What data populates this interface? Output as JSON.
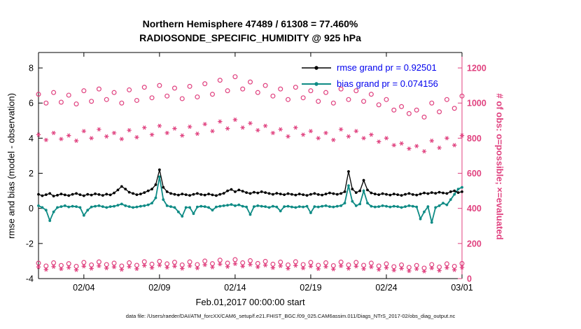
{
  "figure": {
    "title_line1": "Northern Hemisphere 47489 / 61308 = 77.460%",
    "title_line2": "RADIOSONDE_SPECIFIC_HUMIDITY @ 925 hPa",
    "xlabel": "Feb.01,2017 00:00:00 start",
    "ylabel_left": "rmse and bias (model - observation)",
    "ylabel_right": "# of obs: o=possible; ×=evaluated",
    "caption": "data file: /Users/raeder/DAI/ATM_forcXX/CAM6_setup/f.e21.FHIST_BGC.f09_025.CAM6assim.011/Diags_NTrS_2017-02/obs_diag_output.nc"
  },
  "legend": {
    "rmse_label": "rmse grand pr = 0.92501",
    "bias_label": "bias grand pr = 0.074156"
  },
  "colors": {
    "black": "#000000",
    "teal": "#0e8b85",
    "pink": "#e0417f",
    "blue": "#0000ee"
  },
  "chart_data": {
    "type": "line",
    "title": "Northern Hemisphere 47489 / 61308 = 77.460% | RADIOSONDE_SPECIFIC_HUMIDITY @ 925 hPa",
    "x_axis": {
      "label": "Feb.01,2017 00:00:00 start",
      "range_days": [
        0,
        28
      ],
      "ticks": [
        {
          "day": 3,
          "label": "02/04"
        },
        {
          "day": 8,
          "label": "02/09"
        },
        {
          "day": 13,
          "label": "02/14"
        },
        {
          "day": 18,
          "label": "02/19"
        },
        {
          "day": 23,
          "label": "02/24"
        },
        {
          "day": 28,
          "label": "03/01"
        }
      ]
    },
    "y_axis_left": {
      "label": "rmse and bias (model - observation)",
      "lim": [
        -4,
        8.88
      ],
      "ticks": [
        -4,
        -2,
        0,
        2,
        4,
        6,
        8
      ]
    },
    "y_axis_right": {
      "label": "# of obs: o=possible; ×=evaluated",
      "lim": [
        0,
        1288
      ],
      "ticks": [
        0,
        200,
        400,
        600,
        800,
        1000,
        1200
      ],
      "mapping": "count = (left_axis_value + 4) * 100"
    },
    "legend_entries": [
      "rmse grand pr = 0.92501",
      "bias grand pr = 0.074156"
    ],
    "grand_rmse": 0.92501,
    "grand_bias": 0.074156,
    "series": [
      {
        "name": "N_rejected_evaluated",
        "axis": "right",
        "marker": "asterisk",
        "line": false,
        "color": "pink",
        "t_start": 0,
        "t_step": 0.5,
        "values": [
          66,
          52,
          68,
          55,
          63,
          50,
          70,
          58,
          72,
          60,
          66,
          52,
          68,
          56,
          74,
          62,
          76,
          64,
          70,
          58,
          72,
          60,
          78,
          65,
          82,
          68,
          84,
          70,
          80,
          66,
          76,
          62,
          72,
          58,
          74,
          60,
          70,
          56,
          68,
          54,
          72,
          58,
          70,
          56,
          66,
          52,
          62,
          48,
          58,
          44,
          55,
          42,
          60,
          46,
          62,
          50,
          64
        ]
      },
      {
        "name": "N_rejected_possible",
        "axis": "right",
        "marker": "open-circle",
        "line": false,
        "color": "pink",
        "t_start": 0,
        "t_step": 0.5,
        "values": [
          88,
          72,
          90,
          75,
          85,
          70,
          92,
          78,
          95,
          80,
          88,
          72,
          90,
          76,
          96,
          82,
          98,
          84,
          93,
          78,
          95,
          80,
          100,
          85,
          105,
          88,
          108,
          90,
          102,
          86,
          98,
          82,
          94,
          78,
          96,
          80,
          92,
          76,
          90,
          74,
          94,
          78,
          92,
          76,
          88,
          72,
          84,
          68,
          78,
          64,
          75,
          60,
          80,
          66,
          84,
          70,
          86
        ]
      },
      {
        "name": "N_possible",
        "axis": "right",
        "marker": "open-circle",
        "line": false,
        "color": "pink",
        "t_start": 0,
        "t_step": 0.5,
        "values": [
          1050,
          1000,
          1060,
          1005,
          1045,
          995,
          1070,
          1010,
          1080,
          1020,
          1060,
          1000,
          1075,
          1015,
          1090,
          1030,
          1100,
          1040,
          1085,
          1025,
          1095,
          1035,
          1110,
          1050,
          1130,
          1070,
          1150,
          1080,
          1120,
          1060,
          1100,
          1040,
          1080,
          1020,
          1090,
          1030,
          1070,
          1010,
          1060,
          1000,
          1080,
          1020,
          1070,
          1010,
          1050,
          990,
          1020,
          960,
          980,
          940,
          960,
          920,
          1000,
          950,
          1020,
          970,
          1040
        ]
      },
      {
        "name": "N_evaluated",
        "axis": "right",
        "marker": "asterisk",
        "line": false,
        "color": "pink",
        "t_start": 0,
        "t_step": 0.5,
        "values": [
          820,
          790,
          830,
          795,
          815,
          785,
          840,
          800,
          850,
          810,
          830,
          795,
          845,
          805,
          860,
          820,
          870,
          830,
          855,
          815,
          865,
          825,
          880,
          840,
          895,
          855,
          905,
          860,
          885,
          845,
          870,
          830,
          850,
          810,
          860,
          820,
          840,
          800,
          830,
          790,
          850,
          810,
          840,
          800,
          820,
          780,
          800,
          760,
          770,
          740,
          755,
          725,
          785,
          745,
          800,
          760,
          815
        ]
      },
      {
        "name": "bias",
        "axis": "left",
        "marker": "point",
        "line": true,
        "line_width": 1.8,
        "color": "teal",
        "t_start": 0,
        "t_step": 0.25,
        "values": [
          0.15,
          0.05,
          -0.1,
          -0.7,
          -0.2,
          0.05,
          0.1,
          0.15,
          0.08,
          0.12,
          0.1,
          0.05,
          -0.4,
          -0.1,
          0.08,
          0.12,
          0.15,
          0.1,
          0.05,
          0.1,
          0.12,
          0.18,
          0.25,
          0.15,
          0.1,
          0.05,
          0.08,
          0.12,
          0.15,
          0.2,
          0.3,
          0.6,
          1.8,
          0.5,
          0.15,
          0.1,
          0.05,
          -0.2,
          -0.45,
          0.05,
          0.05,
          -0.3,
          0.08,
          0.12,
          0.1,
          0.05,
          -0.1,
          0.08,
          0.12,
          0.15,
          0.18,
          0.22,
          0.15,
          0.2,
          0.12,
          0.08,
          -0.35,
          0.1,
          0.15,
          0.12,
          0.1,
          0.05,
          0.12,
          0.08,
          -0.15,
          0.1,
          0.12,
          0.08,
          0.05,
          0.1,
          0.08,
          0.12,
          -0.25,
          0.1,
          0.08,
          0.12,
          0.15,
          0.1,
          0.08,
          0.12,
          0.15,
          0.3,
          1.3,
          0.4,
          0.15,
          0.25,
          1.0,
          0.3,
          0.12,
          0.08,
          0.1,
          0.15,
          0.12,
          0.08,
          0.12,
          0.1,
          0.05,
          0.1,
          0.15,
          0.12,
          0.08,
          -0.6,
          -0.2,
          0.1,
          -0.8,
          0.05,
          0.15,
          0.3,
          0.2,
          0.5,
          0.8,
          1.1,
          1.2
        ]
      },
      {
        "name": "rmse",
        "axis": "left",
        "marker": "point",
        "line": true,
        "line_width": 1.3,
        "color": "black",
        "t_start": 0,
        "t_step": 0.25,
        "values": [
          0.8,
          0.72,
          0.78,
          0.85,
          0.7,
          0.75,
          0.82,
          0.77,
          0.73,
          0.8,
          0.85,
          0.78,
          0.72,
          0.8,
          0.76,
          0.83,
          0.79,
          0.74,
          0.81,
          0.77,
          0.88,
          1.05,
          1.25,
          1.1,
          0.92,
          0.85,
          0.78,
          0.82,
          0.9,
          1.0,
          1.1,
          1.35,
          2.2,
          1.2,
          0.95,
          0.85,
          0.8,
          0.76,
          0.82,
          0.78,
          0.74,
          0.8,
          0.85,
          0.79,
          0.76,
          0.82,
          0.77,
          0.73,
          0.8,
          0.86,
          1.0,
          1.08,
          0.95,
          1.05,
          0.98,
          0.9,
          0.85,
          0.92,
          0.88,
          0.95,
          0.9,
          0.85,
          0.8,
          0.86,
          0.82,
          0.78,
          0.84,
          0.8,
          0.76,
          0.82,
          0.78,
          0.74,
          0.8,
          0.85,
          0.79,
          0.76,
          0.82,
          0.88,
          0.84,
          0.8,
          0.85,
          0.95,
          2.1,
          1.1,
          0.9,
          1.0,
          1.6,
          1.05,
          0.88,
          0.82,
          0.78,
          0.84,
          0.8,
          0.76,
          0.82,
          0.78,
          0.74,
          0.8,
          0.85,
          0.79,
          0.76,
          0.82,
          0.88,
          0.84,
          0.9,
          0.86,
          0.92,
          0.88,
          0.85,
          0.95,
          1.0,
          0.9,
          0.95
        ]
      }
    ]
  }
}
